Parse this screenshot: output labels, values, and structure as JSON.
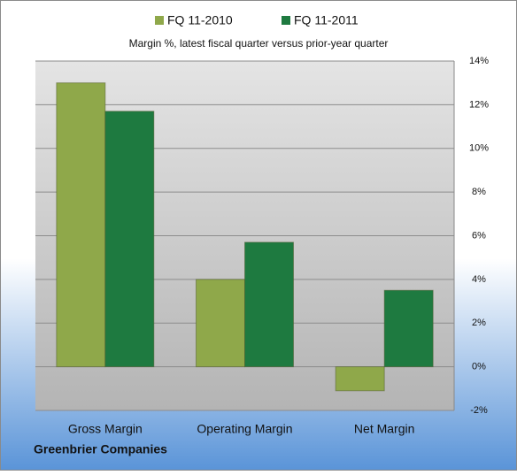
{
  "chart_data": {
    "type": "bar",
    "subtitle": "Margin %,  latest fiscal quarter versus prior-year quarter",
    "footer": "Greenbrier Companies",
    "categories": [
      "Gross Margin",
      "Operating Margin",
      "Net Margin"
    ],
    "series": [
      {
        "name": "FQ 11-2010",
        "color": "#8fa84a",
        "values": [
          13.0,
          4.0,
          -1.1
        ]
      },
      {
        "name": "FQ 11-2011",
        "color": "#1e7a40",
        "values": [
          11.7,
          5.7,
          3.5
        ]
      }
    ],
    "ylim": [
      -2,
      14
    ],
    "yticks": [
      {
        "value": -2,
        "label": "-2%"
      },
      {
        "value": 0,
        "label": "0%"
      },
      {
        "value": 2,
        "label": "2%"
      },
      {
        "value": 4,
        "label": "4%"
      },
      {
        "value": 6,
        "label": "6%"
      },
      {
        "value": 8,
        "label": "8%"
      },
      {
        "value": 10,
        "label": "10%"
      },
      {
        "value": 12,
        "label": "12%"
      },
      {
        "value": 14,
        "label": "14%"
      }
    ],
    "grid": true,
    "legend": "top"
  }
}
